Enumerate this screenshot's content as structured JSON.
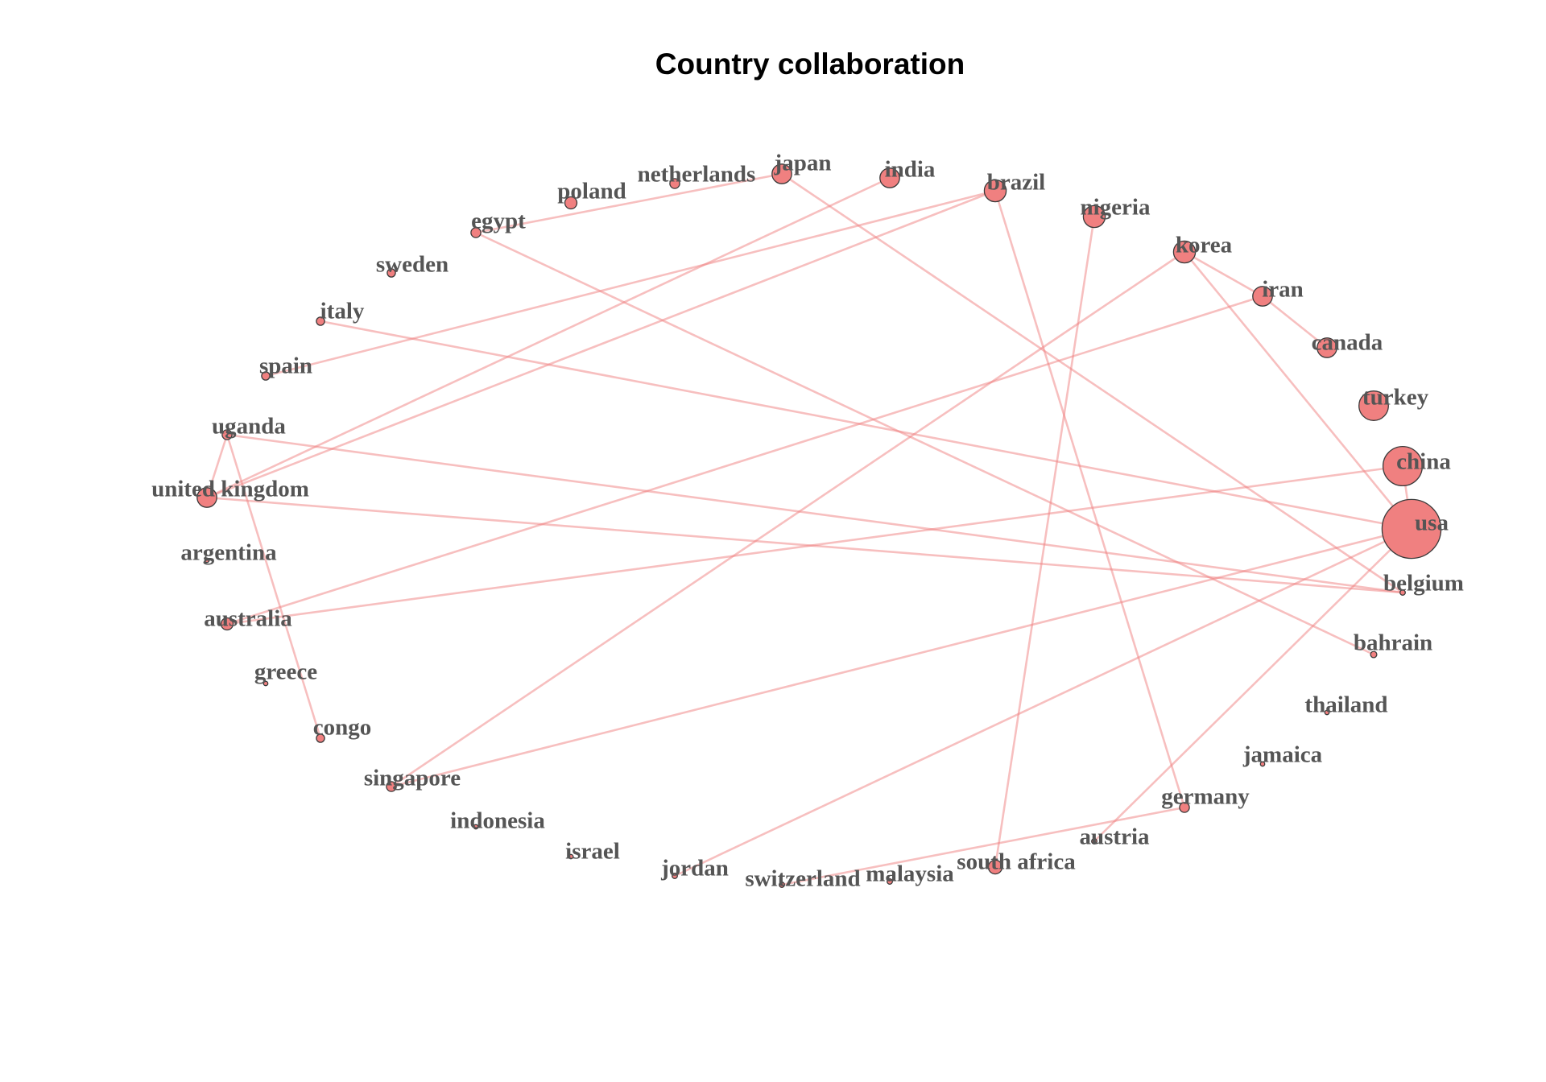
{
  "title": "Country collaboration",
  "colors": {
    "node_fill": "#f08080",
    "edge": "#f08080",
    "node_stroke": "#3a3a3a",
    "label": "#555555"
  },
  "network": {
    "nodes": [
      {
        "id": "usa",
        "label": "usa",
        "weight": 36
      },
      {
        "id": "china",
        "label": "china",
        "weight": 16
      },
      {
        "id": "turkey",
        "label": "turkey",
        "weight": 9
      },
      {
        "id": "canada",
        "label": "canada",
        "weight": 4
      },
      {
        "id": "iran",
        "label": "iran",
        "weight": 4
      },
      {
        "id": "korea",
        "label": "korea",
        "weight": 5
      },
      {
        "id": "nigeria",
        "label": "nigeria",
        "weight": 5
      },
      {
        "id": "brazil",
        "label": "brazil",
        "weight": 5
      },
      {
        "id": "india",
        "label": "india",
        "weight": 4
      },
      {
        "id": "japan",
        "label": "japan",
        "weight": 4
      },
      {
        "id": "netherlands",
        "label": "netherlands",
        "weight": 1
      },
      {
        "id": "poland",
        "label": "poland",
        "weight": 1.5
      },
      {
        "id": "egypt",
        "label": "egypt",
        "weight": 1
      },
      {
        "id": "sweden",
        "label": "sweden",
        "weight": 0.7
      },
      {
        "id": "italy",
        "label": "italy",
        "weight": 0.7
      },
      {
        "id": "spain",
        "label": "spain",
        "weight": 0.7
      },
      {
        "id": "uganda",
        "label": "uganda",
        "weight": 1
      },
      {
        "id": "united-kingdom",
        "label": "united kingdom",
        "weight": 4
      },
      {
        "id": "argentina",
        "label": "argentina",
        "weight": 0.2
      },
      {
        "id": "australia",
        "label": "australia",
        "weight": 1.5
      },
      {
        "id": "greece",
        "label": "greece",
        "weight": 0.2
      },
      {
        "id": "congo",
        "label": "congo",
        "weight": 0.7
      },
      {
        "id": "singapore",
        "label": "singapore",
        "weight": 1
      },
      {
        "id": "indonesia",
        "label": "indonesia",
        "weight": 0.2
      },
      {
        "id": "israel",
        "label": "israel",
        "weight": 0.2
      },
      {
        "id": "jordan",
        "label": "jordan",
        "weight": 0.3
      },
      {
        "id": "switzerland",
        "label": "switzerland",
        "weight": 0.3
      },
      {
        "id": "malaysia",
        "label": "malaysia",
        "weight": 0.3
      },
      {
        "id": "south-africa",
        "label": "south africa",
        "weight": 2
      },
      {
        "id": "austria",
        "label": "austria",
        "weight": 0.3
      },
      {
        "id": "germany",
        "label": "germany",
        "weight": 1
      },
      {
        "id": "jamaica",
        "label": "jamaica",
        "weight": 0.2
      },
      {
        "id": "thailand",
        "label": "thailand",
        "weight": 0.2
      },
      {
        "id": "bahrain",
        "label": "bahrain",
        "weight": 0.4
      },
      {
        "id": "belgium",
        "label": "belgium",
        "weight": 0.3
      }
    ],
    "edges": [
      [
        "egypt",
        "japan"
      ],
      [
        "egypt",
        "bahrain"
      ],
      [
        "japan",
        "belgium"
      ],
      [
        "india",
        "united-kingdom"
      ],
      [
        "brazil",
        "united-kingdom"
      ],
      [
        "brazil",
        "spain"
      ],
      [
        "brazil",
        "germany"
      ],
      [
        "nigeria",
        "south-africa"
      ],
      [
        "korea",
        "iran"
      ],
      [
        "korea",
        "singapore"
      ],
      [
        "korea",
        "usa"
      ],
      [
        "iran",
        "canada"
      ],
      [
        "iran",
        "australia"
      ],
      [
        "china",
        "usa"
      ],
      [
        "china",
        "australia"
      ],
      [
        "usa",
        "singapore"
      ],
      [
        "usa",
        "jordan"
      ],
      [
        "usa",
        "italy"
      ],
      [
        "usa",
        "austria"
      ],
      [
        "united-kingdom",
        "belgium"
      ],
      [
        "united-kingdom",
        "uganda"
      ],
      [
        "uganda",
        "belgium"
      ],
      [
        "uganda",
        "congo"
      ],
      [
        "switzerland",
        "germany"
      ]
    ]
  }
}
